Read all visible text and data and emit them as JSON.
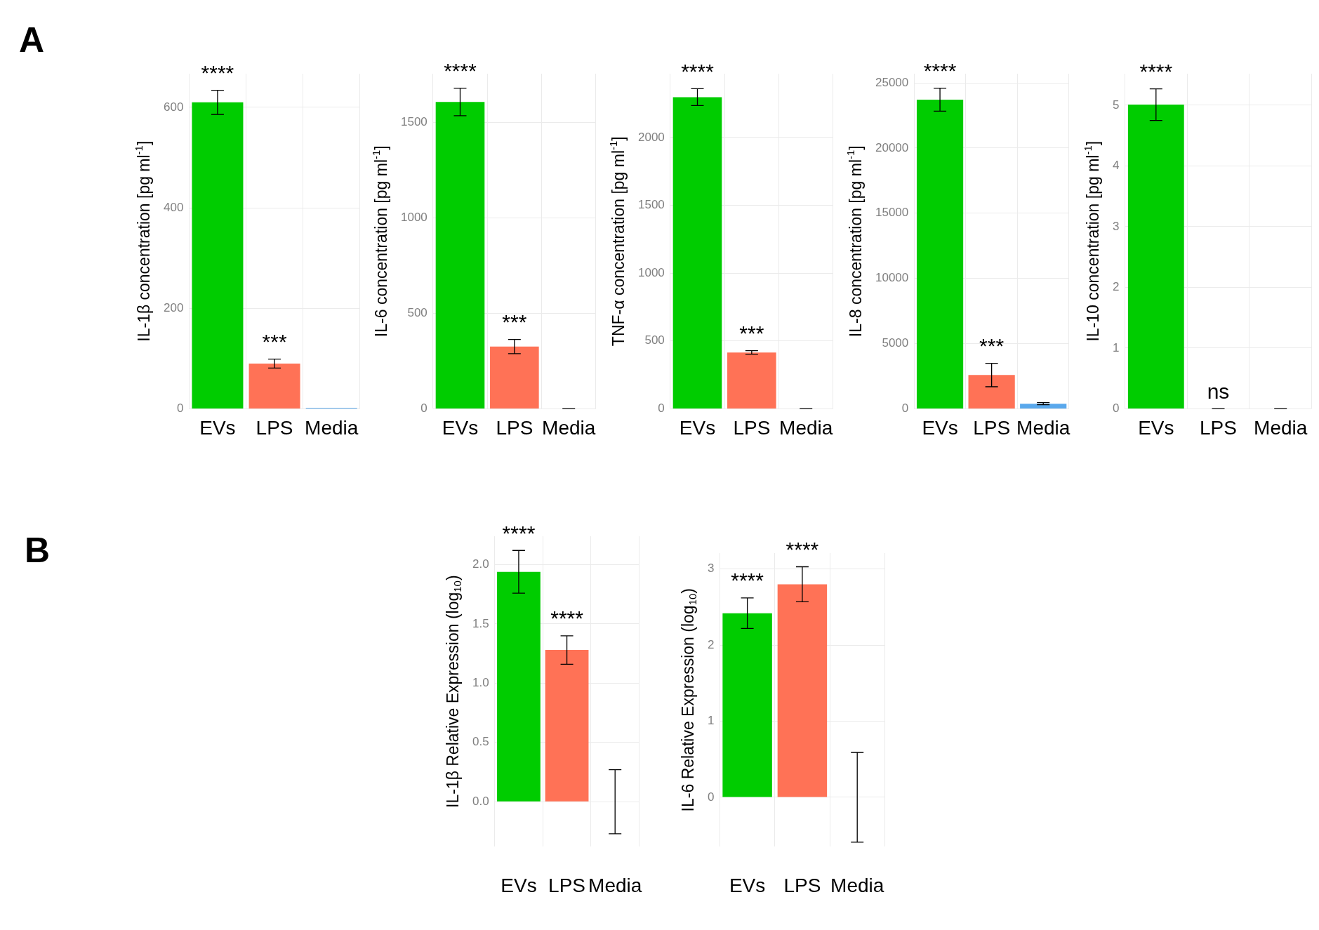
{
  "chart_data": [
    {
      "type": "bar",
      "ylabel": "IL-1β concentration [pg ml$^{-1}$]",
      "categories": [
        "EVs",
        "LPS",
        "Media"
      ],
      "values": [
        610,
        90,
        2
      ],
      "colors": [
        "#00cc00",
        "#ff7256",
        "#59a8ec"
      ],
      "errors": [
        24,
        9,
        null
      ],
      "ylim": [
        0,
        667
      ],
      "yticks": [
        0,
        200,
        400,
        600
      ],
      "grid": true,
      "annotations": [
        "A",
        {
          "text": "****",
          "x": "EVs",
          "y": 634
        },
        {
          "text": "***",
          "x": "LPS",
          "y": 99
        }
      ]
    },
    {
      "type": "bar",
      "ylabel": "IL-6 concentration [pg ml$^{-1}$]",
      "categories": [
        "EVs",
        "LPS",
        "Media"
      ],
      "values": [
        1607,
        326,
        0
      ],
      "colors": [
        "#00cc00",
        "#ff7256",
        "#59a8ec"
      ],
      "errors": [
        72,
        37,
        0
      ],
      "ylim": [
        0,
        1755
      ],
      "yticks": [
        0,
        500,
        1000,
        1500
      ],
      "grid": true,
      "annotations": [
        {
          "text": "****",
          "x": "EVs",
          "y": 1679
        },
        {
          "text": "***",
          "x": "LPS",
          "y": 363
        }
      ]
    },
    {
      "type": "bar",
      "ylabel": "TNF-α concentration [pg ml$^{-1}$]",
      "categories": [
        "EVs",
        "LPS",
        "Media"
      ],
      "values": [
        2297,
        415,
        0
      ],
      "colors": [
        "#00cc00",
        "#ff7256",
        "#59a8ec"
      ],
      "errors": [
        62,
        13,
        0
      ],
      "ylim": [
        0,
        2470
      ],
      "yticks": [
        0,
        500,
        1000,
        1500,
        2000
      ],
      "grid": true,
      "annotations": [
        {
          "text": "****",
          "x": "EVs",
          "y": 2359
        },
        {
          "text": "***",
          "x": "LPS",
          "y": 428
        }
      ]
    },
    {
      "type": "bar",
      "ylabel": "IL-8 concentration [pg ml$^{-1}$]",
      "categories": [
        "EVs",
        "LPS",
        "Media"
      ],
      "values": [
        23710,
        2590,
        390
      ],
      "colors": [
        "#00cc00",
        "#ff7256",
        "#59a8ec"
      ],
      "errors": [
        880,
        900,
        80
      ],
      "ylim": [
        0,
        25700
      ],
      "yticks": [
        0,
        5000,
        10000,
        15000,
        20000,
        25000
      ],
      "grid": true,
      "annotations": [
        {
          "text": "****",
          "x": "EVs",
          "y": 24590
        },
        {
          "text": "***",
          "x": "LPS",
          "y": 3490
        }
      ]
    },
    {
      "type": "bar",
      "ylabel": "IL-10 concentration [pg ml$^{-1}$]",
      "categories": [
        "EVs",
        "LPS",
        "Media"
      ],
      "values": [
        5.01,
        0,
        0
      ],
      "colors": [
        "#00cc00",
        "#ff7256",
        "#59a8ec"
      ],
      "errors": [
        0.26,
        0,
        0
      ],
      "ylim": [
        0,
        5.52
      ],
      "yticks": [
        0,
        1,
        2,
        3,
        4,
        5
      ],
      "grid": true,
      "annotations": [
        {
          "text": "****",
          "x": "EVs",
          "y": 5.27
        },
        {
          "text": "ns",
          "x": "LPS",
          "y": 0
        }
      ]
    },
    {
      "type": "bar",
      "ylabel": "IL-1β Relative Expression (log$_{10}$)",
      "categories": [
        "EVs",
        "LPS",
        "Media"
      ],
      "values": [
        1.94,
        1.28,
        0
      ],
      "colors": [
        "#00cc00",
        "#ff7256",
        "#59a8ec"
      ],
      "errors": [
        0.18,
        0.12,
        0.27
      ],
      "ylim": [
        -0.38,
        2.24
      ],
      "yticks": [
        {
          "value": 0,
          "label": "0.0"
        },
        {
          "value": 0.5,
          "label": "0.5"
        },
        {
          "value": 1,
          "label": "1.0"
        },
        {
          "value": 1.5,
          "label": "1.5"
        },
        {
          "value": 2,
          "label": "2.0"
        }
      ],
      "grid": true,
      "annotations": [
        "B",
        {
          "text": "****",
          "x": "EVs",
          "y": 2.12
        },
        {
          "text": "****",
          "x": "LPS",
          "y": 1.4
        }
      ]
    },
    {
      "type": "bar",
      "ylabel": "IL-6 Relative Expression (log$_{10}$)",
      "categories": [
        "EVs",
        "LPS",
        "Media"
      ],
      "values": [
        2.42,
        2.8,
        0
      ],
      "colors": [
        "#00cc00",
        "#ff7256",
        "#59a8ec"
      ],
      "errors": [
        0.2,
        0.23,
        0.59
      ],
      "ylim": [
        -0.65,
        3.21
      ],
      "yticks": [
        0,
        1,
        2,
        3
      ],
      "grid": true,
      "annotations": [
        {
          "text": "****",
          "x": "EVs",
          "y": 2.62
        },
        {
          "text": "****",
          "x": "LPS",
          "y": 3.03
        }
      ]
    }
  ]
}
